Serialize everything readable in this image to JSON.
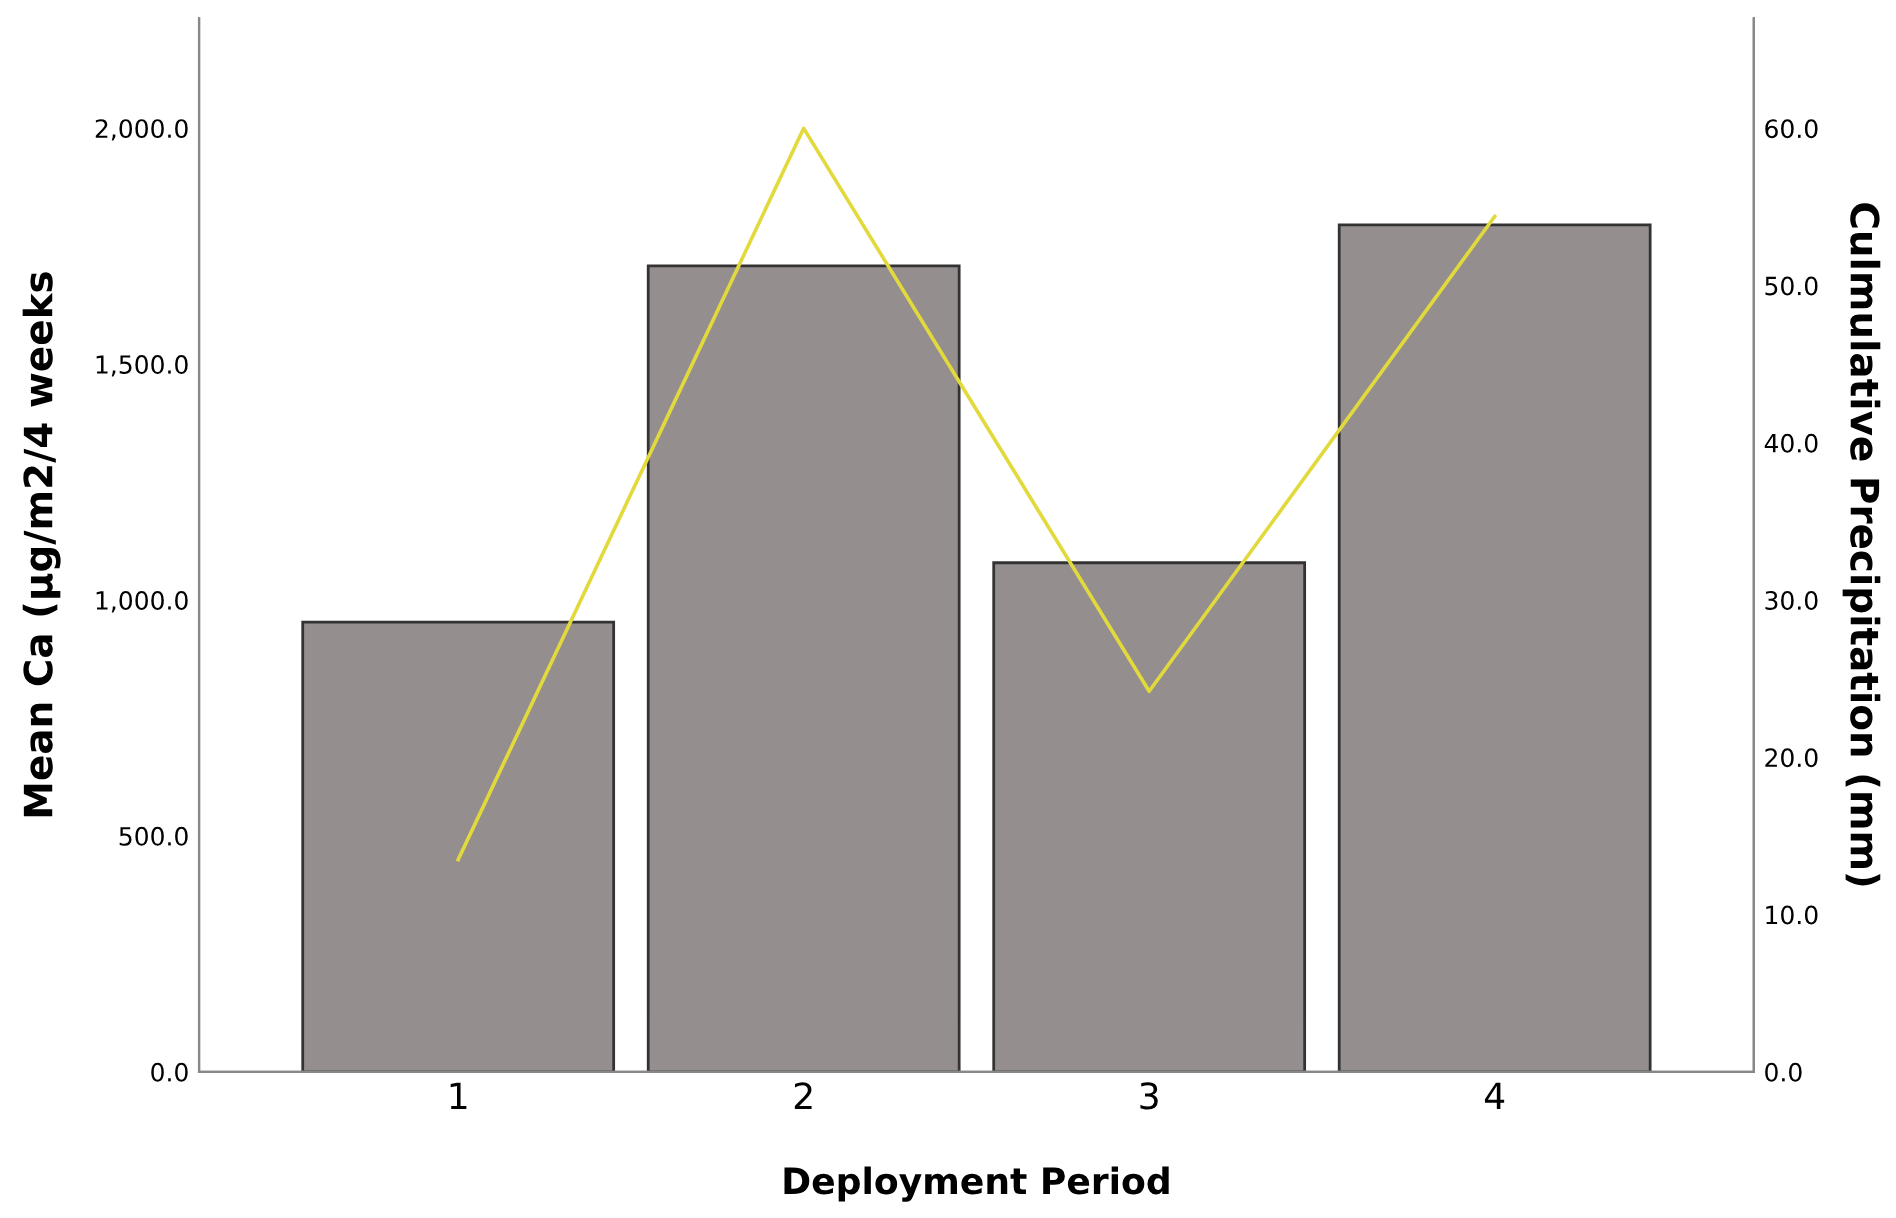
{
  "chart_data": {
    "type": "bar",
    "categories": [
      "1",
      "2",
      "3",
      "4"
    ],
    "xlabel": "Deployment Period",
    "ylabel": "Mean Ca (µg/m2/4 weeks",
    "y2label": "Culmulative Precipitation (mm)",
    "series": [
      {
        "color": "#948f8e",
        "values": [
          953,
          1708,
          1079,
          1795
        ]
      },
      {
        "type": "line",
        "axis": "y2",
        "color": "#e2da3c",
        "values": [
          13.5,
          60,
          24.2,
          54.4
        ]
      }
    ],
    "ylim": [
      0,
      2233
    ],
    "yticks": [
      {
        "value": 0,
        "label": "0.0"
      },
      {
        "value": 500,
        "label": "500.0"
      },
      {
        "value": 1000,
        "label": "1,000.0"
      },
      {
        "value": 1500,
        "label": "1,500.0"
      },
      {
        "value": 2000,
        "label": "2,000.0"
      }
    ],
    "y2lim": [
      0,
      67
    ],
    "y2ticks": [
      {
        "value": 0,
        "label": "0.0"
      },
      {
        "value": 10,
        "label": "10.0"
      },
      {
        "value": 20,
        "label": "20.0"
      },
      {
        "value": 30,
        "label": "30.0"
      },
      {
        "value": 40,
        "label": "40.0"
      },
      {
        "value": 50,
        "label": "50.0"
      },
      {
        "value": 60,
        "label": "60.0"
      }
    ],
    "grid": false,
    "legend": false,
    "marker": "none",
    "line_style": "solid"
  }
}
